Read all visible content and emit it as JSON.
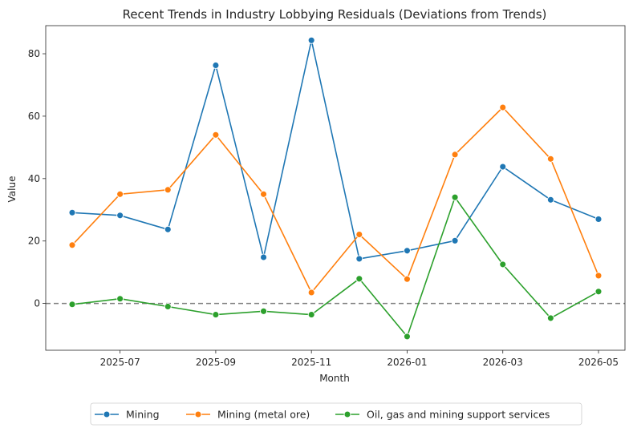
{
  "chart_data": {
    "type": "line",
    "title": "Recent Trends in Industry Lobbying Residuals (Deviations from Trends)",
    "xlabel": "Month",
    "ylabel": "Value",
    "x": [
      "2025-06",
      "2025-07",
      "2025-08",
      "2025-09",
      "2025-10",
      "2025-11",
      "2025-12",
      "2026-01",
      "2026-02",
      "2026-03",
      "2026-04",
      "2026-05"
    ],
    "x_tick_labels": [
      "2025-07",
      "2025-09",
      "2025-11",
      "2026-01",
      "2026-03",
      "2026-05"
    ],
    "y_ticks": [
      0,
      20,
      40,
      60,
      80
    ],
    "ylim": [
      -15,
      89
    ],
    "reference_line": {
      "y": 0,
      "style": "dashed",
      "color": "#808080"
    },
    "legend_position": "bottom-center",
    "series": [
      {
        "name": "Mining",
        "color": "#1f77b4",
        "values": [
          29.1,
          28.2,
          23.7,
          76.3,
          14.8,
          84.3,
          14.3,
          16.9,
          20.1,
          43.8,
          33.2,
          27.0
        ]
      },
      {
        "name": "Mining (metal ore)",
        "color": "#ff7f0e",
        "values": [
          18.7,
          35.0,
          36.4,
          54.0,
          35.0,
          3.5,
          22.1,
          7.8,
          47.7,
          62.8,
          46.3,
          8.9
        ]
      },
      {
        "name": "Oil, gas and mining support services",
        "color": "#2ca02c",
        "values": [
          -0.3,
          1.5,
          -1.0,
          -3.6,
          -2.5,
          -3.6,
          7.9,
          -10.6,
          34.0,
          12.5,
          -4.7,
          3.8
        ]
      }
    ]
  }
}
